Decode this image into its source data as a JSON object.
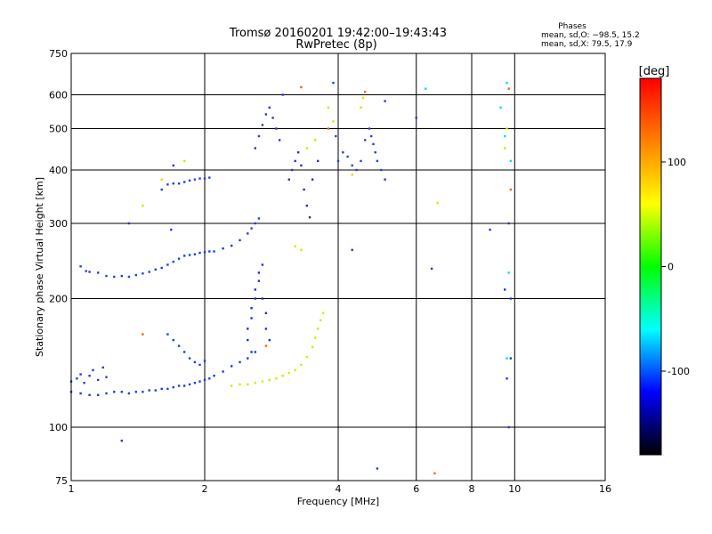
{
  "chart_data": {
    "type": "scatter",
    "title": "Tromsø 20160201 19:42:00–19:43:43",
    "subtitle": "RwPretec (8p)",
    "xlabel": "Frequency [MHz]",
    "ylabel": "Stationary phase Virtual Height [km]",
    "x_scale": "log",
    "y_scale": "log",
    "xlim": [
      1,
      16
    ],
    "ylim": [
      75,
      750
    ],
    "x_ticks": [
      1,
      2,
      4,
      6,
      8,
      10,
      16
    ],
    "y_ticks": [
      75,
      100,
      200,
      300,
      400,
      500,
      600,
      750
    ],
    "grid": true,
    "phases": {
      "title": "Phases",
      "line_o": "mean, sd,O: −98.5, 15.2",
      "line_x": "mean, sd,X:  79.5, 17.9"
    },
    "colorbar": {
      "label": "[deg]",
      "range": [
        -180,
        180
      ],
      "ticks": [
        100,
        0,
        -100
      ],
      "colors": [
        "#ff0000",
        "#ff8000",
        "#ffff00",
        "#00ff00",
        "#00ffff",
        "#0000ff",
        "#000000"
      ]
    },
    "series": [
      {
        "color": "#1e3ce0",
        "points": [
          [
            1.0,
            121
          ],
          [
            1.05,
            120
          ],
          [
            1.1,
            119
          ],
          [
            1.15,
            119
          ],
          [
            1.2,
            120
          ],
          [
            1.25,
            121
          ],
          [
            1.3,
            121
          ],
          [
            1.35,
            120
          ],
          [
            1.4,
            121
          ],
          [
            1.45,
            121
          ],
          [
            1.5,
            122
          ],
          [
            1.55,
            122
          ],
          [
            1.6,
            123
          ],
          [
            1.65,
            123
          ],
          [
            1.7,
            124
          ],
          [
            1.75,
            125
          ],
          [
            1.8,
            125
          ],
          [
            1.85,
            126
          ],
          [
            1.9,
            127
          ],
          [
            1.95,
            128
          ],
          [
            2.0,
            129
          ],
          [
            2.05,
            130
          ],
          [
            2.1,
            132
          ],
          [
            2.2,
            135
          ],
          [
            2.3,
            139
          ],
          [
            2.4,
            142
          ],
          [
            2.5,
            145
          ],
          [
            2.6,
            150
          ]
        ]
      },
      {
        "color": "#2040d8",
        "points": [
          [
            1.0,
            128
          ],
          [
            1.03,
            130
          ],
          [
            1.05,
            133
          ],
          [
            1.07,
            127
          ],
          [
            1.1,
            132
          ],
          [
            1.12,
            136
          ],
          [
            1.15,
            129
          ],
          [
            1.18,
            138
          ],
          [
            1.2,
            131
          ]
        ]
      },
      {
        "color": "#1e40e0",
        "points": [
          [
            1.05,
            238
          ],
          [
            1.08,
            232
          ],
          [
            1.1,
            231
          ],
          [
            1.15,
            230
          ],
          [
            1.2,
            226
          ],
          [
            1.25,
            225
          ],
          [
            1.3,
            226
          ],
          [
            1.35,
            225
          ],
          [
            1.4,
            227
          ],
          [
            1.45,
            229
          ],
          [
            1.5,
            231
          ],
          [
            1.55,
            234
          ],
          [
            1.6,
            236
          ],
          [
            1.65,
            240
          ],
          [
            1.7,
            244
          ],
          [
            1.75,
            248
          ],
          [
            1.8,
            252
          ],
          [
            1.85,
            253
          ],
          [
            1.9,
            254
          ],
          [
            1.95,
            256
          ],
          [
            2.0,
            257
          ],
          [
            2.05,
            258
          ],
          [
            2.1,
            258
          ],
          [
            2.2,
            262
          ],
          [
            2.3,
            266
          ],
          [
            2.4,
            274
          ],
          [
            2.5,
            284
          ],
          [
            2.55,
            292
          ],
          [
            2.6,
            300
          ],
          [
            2.65,
            308
          ]
        ]
      },
      {
        "color": "#2030d0",
        "points": [
          [
            2.5,
            160
          ],
          [
            2.5,
            170
          ],
          [
            2.55,
            180
          ],
          [
            2.55,
            190
          ],
          [
            2.6,
            200
          ],
          [
            2.6,
            210
          ],
          [
            2.65,
            220
          ],
          [
            2.65,
            230
          ],
          [
            2.7,
            240
          ],
          [
            2.7,
            200
          ],
          [
            2.75,
            185
          ],
          [
            2.75,
            170
          ],
          [
            2.8,
            160
          ],
          [
            2.55,
            150
          ]
        ]
      },
      {
        "color": "#1e40e0",
        "points": [
          [
            1.7,
            160
          ],
          [
            1.75,
            155
          ],
          [
            1.8,
            150
          ],
          [
            1.85,
            145
          ],
          [
            1.9,
            142
          ],
          [
            1.95,
            140
          ],
          [
            2.0,
            143
          ],
          [
            1.65,
            165
          ]
        ]
      },
      {
        "color": "#2a40d8",
        "points": [
          [
            1.6,
            360
          ],
          [
            1.65,
            370
          ],
          [
            1.7,
            372
          ],
          [
            1.75,
            372
          ],
          [
            1.8,
            375
          ],
          [
            1.85,
            378
          ],
          [
            1.9,
            380
          ],
          [
            1.95,
            382
          ],
          [
            2.0,
            382
          ],
          [
            2.05,
            384
          ]
        ]
      },
      {
        "color": "#2a38d0",
        "points": [
          [
            2.6,
            450
          ],
          [
            2.65,
            480
          ],
          [
            2.7,
            510
          ],
          [
            2.75,
            540
          ],
          [
            2.8,
            560
          ],
          [
            2.85,
            530
          ],
          [
            2.9,
            500
          ],
          [
            2.95,
            470
          ],
          [
            3.0,
            600
          ]
        ]
      },
      {
        "color": "#2a30c0",
        "points": [
          [
            3.1,
            380
          ],
          [
            3.15,
            400
          ],
          [
            3.2,
            420
          ],
          [
            3.25,
            440
          ],
          [
            3.3,
            410
          ],
          [
            3.35,
            360
          ],
          [
            3.4,
            330
          ],
          [
            3.45,
            310
          ],
          [
            3.5,
            380
          ],
          [
            3.6,
            420
          ]
        ]
      },
      {
        "color": "#2a40d8",
        "points": [
          [
            4.0,
            420
          ],
          [
            4.1,
            440
          ],
          [
            4.2,
            430
          ],
          [
            4.3,
            410
          ],
          [
            4.4,
            400
          ],
          [
            4.5,
            420
          ],
          [
            4.6,
            470
          ],
          [
            4.7,
            500
          ],
          [
            4.75,
            480
          ],
          [
            4.8,
            460
          ],
          [
            4.85,
            440
          ],
          [
            4.9,
            420
          ],
          [
            5.0,
            400
          ],
          [
            5.1,
            380
          ]
        ]
      },
      {
        "color": "#c8f000",
        "points": [
          [
            2.3,
            125
          ],
          [
            2.4,
            126
          ],
          [
            2.5,
            126
          ],
          [
            2.6,
            127
          ],
          [
            2.7,
            128
          ],
          [
            2.8,
            129
          ],
          [
            2.9,
            130
          ],
          [
            3.0,
            132
          ],
          [
            3.1,
            134
          ],
          [
            3.2,
            136
          ],
          [
            3.3,
            140
          ],
          [
            3.4,
            146
          ],
          [
            3.5,
            154
          ],
          [
            3.55,
            162
          ],
          [
            3.6,
            170
          ],
          [
            3.65,
            178
          ],
          [
            3.7,
            185
          ]
        ]
      },
      {
        "color": "#e0e000",
        "points": [
          [
            1.45,
            330
          ],
          [
            1.6,
            380
          ],
          [
            1.7,
            410
          ],
          [
            1.8,
            420
          ],
          [
            3.2,
            265
          ],
          [
            3.3,
            260
          ],
          [
            3.4,
            450
          ],
          [
            3.55,
            470
          ],
          [
            3.8,
            560
          ],
          [
            3.9,
            520
          ],
          [
            4.3,
            390
          ],
          [
            4.5,
            560
          ],
          [
            4.55,
            590
          ],
          [
            6.7,
            335
          ],
          [
            9.5,
            450
          ],
          [
            9.6,
            500
          ]
        ]
      },
      {
        "color": "#00e0e0",
        "points": [
          [
            6.3,
            620
          ],
          [
            9.3,
            560
          ],
          [
            9.5,
            480
          ],
          [
            9.6,
            145
          ],
          [
            9.7,
            230
          ],
          [
            9.6,
            640
          ],
          [
            9.8,
            420
          ]
        ]
      },
      {
        "color": "#203cd0",
        "points": [
          [
            9.7,
            100
          ],
          [
            9.8,
            200
          ],
          [
            9.6,
            130
          ],
          [
            9.8,
            145
          ],
          [
            9.7,
            300
          ],
          [
            9.5,
            210
          ],
          [
            8.8,
            290
          ],
          [
            6.5,
            235
          ],
          [
            6.0,
            530
          ],
          [
            5.1,
            580
          ],
          [
            4.3,
            260
          ],
          [
            3.9,
            640
          ],
          [
            3.95,
            480
          ],
          [
            1.35,
            300
          ],
          [
            1.3,
            93
          ],
          [
            1.7,
            410
          ],
          [
            1.68,
            290
          ],
          [
            4.9,
            80
          ]
        ]
      },
      {
        "color": "#ff6000",
        "points": [
          [
            9.7,
            620
          ],
          [
            9.8,
            360
          ],
          [
            6.6,
            78
          ],
          [
            4.6,
            610
          ],
          [
            3.3,
            625
          ],
          [
            3.8,
            500
          ],
          [
            1.45,
            165
          ],
          [
            2.75,
            155
          ]
        ]
      }
    ]
  }
}
